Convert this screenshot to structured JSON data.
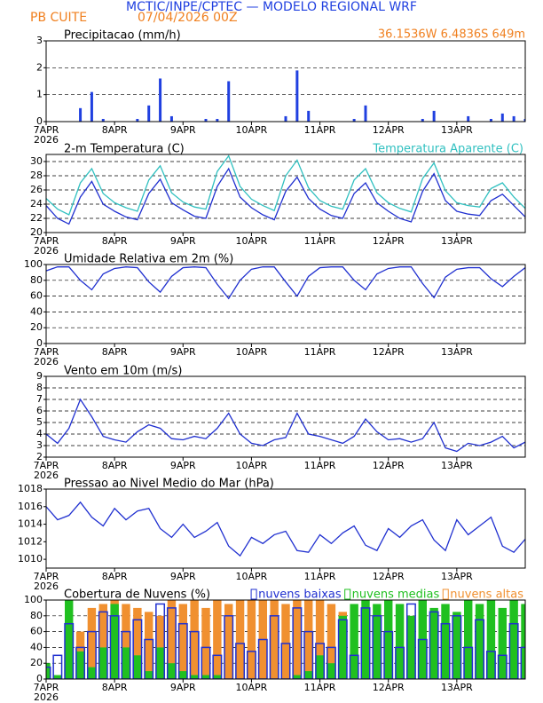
{
  "header": {
    "title": "MCTIC/INPE/CPTEC — MODELO REGIONAL WRF",
    "station": "PB CUITE",
    "run": "07/04/2026 00Z",
    "location": "36.1536W 6.4836S 649m"
  },
  "chart_data": [
    {
      "type": "bar",
      "title": "Precipitacao (mm/h)",
      "color": "#2040e0",
      "grid": true,
      "x": [
        0,
        4,
        8,
        12,
        16,
        20,
        24,
        28,
        32,
        36,
        40,
        44,
        48,
        52,
        56,
        60,
        64,
        68,
        72,
        76,
        80,
        84,
        88,
        92,
        96,
        100,
        104,
        108,
        112,
        116,
        120,
        124,
        128,
        132,
        136,
        140,
        144,
        148,
        152,
        156,
        160,
        164,
        168
      ],
      "values": [
        0,
        0,
        0,
        0.5,
        1.1,
        0.1,
        0,
        0,
        0.1,
        0.6,
        1.6,
        0.2,
        0,
        0,
        0.1,
        0.1,
        1.5,
        0,
        0,
        0,
        0,
        0.2,
        1.9,
        0.4,
        0,
        0,
        0,
        0.1,
        0.6,
        0,
        0,
        0,
        0,
        0.1,
        0.4,
        0,
        0,
        0.2,
        0,
        0.1,
        0.3,
        0.2,
        0.1
      ],
      "xlim": [
        0,
        168
      ],
      "xticks": [
        {
          "value": 0,
          "label": "7APR"
        },
        {
          "value": 24,
          "label": "8APR"
        },
        {
          "value": 48,
          "label": "9APR"
        },
        {
          "value": 72,
          "label": "10APR"
        },
        {
          "value": 96,
          "label": "11APR"
        },
        {
          "value": 120,
          "label": "12APR"
        },
        {
          "value": 144,
          "label": "13APR"
        }
      ],
      "x_year": "2026",
      "ylim": [
        0,
        3
      ],
      "yticks": [
        0,
        1,
        2,
        3
      ]
    },
    {
      "type": "line",
      "grid": true,
      "x": [
        0,
        4,
        8,
        12,
        16,
        20,
        24,
        28,
        32,
        36,
        40,
        44,
        48,
        52,
        56,
        60,
        64,
        68,
        72,
        76,
        80,
        84,
        88,
        92,
        96,
        100,
        104,
        108,
        112,
        116,
        120,
        124,
        128,
        132,
        136,
        140,
        144,
        148,
        152,
        156,
        160,
        164,
        168
      ],
      "series": [
        {
          "name": "2-m Temperatura (C)",
          "color": "#2030d0",
          "values": [
            23.8,
            22.0,
            21.2,
            25.0,
            27.2,
            24.0,
            23.0,
            22.2,
            21.8,
            25.5,
            27.5,
            24.2,
            23.2,
            22.3,
            22.0,
            26.5,
            29.0,
            25.0,
            23.5,
            22.5,
            21.8,
            25.8,
            27.8,
            24.8,
            23.3,
            22.4,
            22.0,
            25.5,
            27.0,
            24.2,
            23.0,
            22.0,
            21.5,
            25.8,
            28.3,
            24.5,
            23.0,
            22.6,
            22.4,
            24.5,
            25.4,
            23.8,
            22.2
          ]
        },
        {
          "name": "Temperatura Aparente (C)",
          "color": "#30c0c0",
          "values": [
            24.8,
            23.3,
            22.5,
            27.0,
            29.0,
            25.5,
            24.2,
            23.5,
            23.0,
            27.4,
            29.4,
            25.6,
            24.3,
            23.6,
            23.3,
            28.6,
            30.8,
            26.5,
            24.7,
            23.8,
            23.1,
            28.0,
            30.2,
            26.3,
            24.5,
            23.7,
            23.3,
            27.4,
            29.0,
            25.6,
            24.2,
            23.4,
            22.9,
            27.6,
            29.8,
            25.9,
            24.2,
            23.8,
            23.6,
            26.2,
            27.0,
            25.0,
            23.4
          ]
        }
      ],
      "xlim": [
        0,
        168
      ],
      "xticks": [
        {
          "value": 0,
          "label": "7APR"
        },
        {
          "value": 24,
          "label": "8APR"
        },
        {
          "value": 48,
          "label": "9APR"
        },
        {
          "value": 72,
          "label": "10APR"
        },
        {
          "value": 96,
          "label": "11APR"
        },
        {
          "value": 120,
          "label": "12APR"
        },
        {
          "value": 144,
          "label": "13APR"
        }
      ],
      "x_year": "2026",
      "ylim": [
        20,
        31
      ],
      "yticks": [
        20,
        22,
        24,
        26,
        28,
        30
      ]
    },
    {
      "type": "line",
      "title": "Umidade Relativa em 2m (%)",
      "color": "#2030d0",
      "grid": true,
      "x": [
        0,
        4,
        8,
        12,
        16,
        20,
        24,
        28,
        32,
        36,
        40,
        44,
        48,
        52,
        56,
        60,
        64,
        68,
        72,
        76,
        80,
        84,
        88,
        92,
        96,
        100,
        104,
        108,
        112,
        116,
        120,
        124,
        128,
        132,
        136,
        140,
        144,
        148,
        152,
        156,
        160,
        164,
        168
      ],
      "values": [
        92,
        97,
        97,
        80,
        68,
        88,
        95,
        97,
        96,
        78,
        65,
        85,
        96,
        97,
        96,
        75,
        57,
        80,
        94,
        97,
        97,
        78,
        60,
        85,
        96,
        97,
        97,
        80,
        68,
        88,
        95,
        97,
        97,
        76,
        58,
        84,
        94,
        96,
        96,
        82,
        72,
        85,
        96
      ],
      "xlim": [
        0,
        168
      ],
      "xticks": [
        {
          "value": 0,
          "label": "7APR"
        },
        {
          "value": 24,
          "label": "8APR"
        },
        {
          "value": 48,
          "label": "9APR"
        },
        {
          "value": 72,
          "label": "10APR"
        },
        {
          "value": 96,
          "label": "11APR"
        },
        {
          "value": 120,
          "label": "12APR"
        },
        {
          "value": 144,
          "label": "13APR"
        }
      ],
      "x_year": "2026",
      "ylim": [
        0,
        100
      ],
      "yticks": [
        0,
        20,
        40,
        60,
        80,
        100
      ]
    },
    {
      "type": "line",
      "title": "Vento em 10m (m/s)",
      "color": "#2030d0",
      "grid": true,
      "x": [
        0,
        4,
        8,
        12,
        16,
        20,
        24,
        28,
        32,
        36,
        40,
        44,
        48,
        52,
        56,
        60,
        64,
        68,
        72,
        76,
        80,
        84,
        88,
        92,
        96,
        100,
        104,
        108,
        112,
        116,
        120,
        124,
        128,
        132,
        136,
        140,
        144,
        148,
        152,
        156,
        160,
        164,
        168
      ],
      "values": [
        4.0,
        3.2,
        4.5,
        7.0,
        5.5,
        3.8,
        3.5,
        3.3,
        4.2,
        4.8,
        4.5,
        3.6,
        3.5,
        3.8,
        3.6,
        4.5,
        5.8,
        4.0,
        3.2,
        3.0,
        3.5,
        3.7,
        5.8,
        4.0,
        3.8,
        3.5,
        3.2,
        3.8,
        5.3,
        4.2,
        3.5,
        3.6,
        3.3,
        3.6,
        5.0,
        2.8,
        2.5,
        3.2,
        3.0,
        3.3,
        3.8,
        2.8,
        3.3
      ],
      "xlim": [
        0,
        168
      ],
      "xticks": [
        {
          "value": 0,
          "label": "7APR"
        },
        {
          "value": 24,
          "label": "8APR"
        },
        {
          "value": 48,
          "label": "9APR"
        },
        {
          "value": 72,
          "label": "10APR"
        },
        {
          "value": 96,
          "label": "11APR"
        },
        {
          "value": 120,
          "label": "12APR"
        },
        {
          "value": 144,
          "label": "13APR"
        }
      ],
      "x_year": "2026",
      "ylim": [
        2,
        9
      ],
      "yticks": [
        2,
        3,
        4,
        5,
        6,
        7,
        8,
        9
      ]
    },
    {
      "type": "line",
      "title": "Pressao ao Nivel Medio do Mar (hPa)",
      "color": "#2030d0",
      "grid": false,
      "x": [
        0,
        4,
        8,
        12,
        16,
        20,
        24,
        28,
        32,
        36,
        40,
        44,
        48,
        52,
        56,
        60,
        64,
        68,
        72,
        76,
        80,
        84,
        88,
        92,
        96,
        100,
        104,
        108,
        112,
        116,
        120,
        124,
        128,
        132,
        136,
        140,
        144,
        148,
        152,
        156,
        160,
        164,
        168
      ],
      "values": [
        1016.0,
        1014.5,
        1015.0,
        1016.5,
        1014.8,
        1013.8,
        1015.8,
        1014.5,
        1015.5,
        1015.8,
        1013.5,
        1012.5,
        1014.0,
        1012.5,
        1013.2,
        1014.2,
        1011.5,
        1010.4,
        1012.5,
        1011.8,
        1012.8,
        1013.2,
        1011.0,
        1010.8,
        1012.8,
        1011.8,
        1013.0,
        1013.8,
        1011.6,
        1011.0,
        1013.5,
        1012.5,
        1013.8,
        1014.5,
        1012.2,
        1011.0,
        1014.5,
        1012.8,
        1013.8,
        1014.8,
        1011.5,
        1010.8,
        1012.3
      ],
      "xlim": [
        0,
        168
      ],
      "xticks": [
        {
          "value": 0,
          "label": "7APR"
        },
        {
          "value": 24,
          "label": "8APR"
        },
        {
          "value": 48,
          "label": "9APR"
        },
        {
          "value": 72,
          "label": "10APR"
        },
        {
          "value": 96,
          "label": "11APR"
        },
        {
          "value": 120,
          "label": "12APR"
        },
        {
          "value": 144,
          "label": "13APR"
        }
      ],
      "x_year": "2026",
      "ylim": [
        1009,
        1018
      ],
      "yticks": [
        1010,
        1012,
        1014,
        1016,
        1018
      ]
    },
    {
      "type": "bar",
      "title": "Cobertura de Nuvens (%)",
      "grid": true,
      "x": [
        0,
        4,
        8,
        12,
        16,
        20,
        24,
        28,
        32,
        36,
        40,
        44,
        48,
        52,
        56,
        60,
        64,
        68,
        72,
        76,
        80,
        84,
        88,
        92,
        96,
        100,
        104,
        108,
        112,
        116,
        120,
        124,
        128,
        132,
        136,
        140,
        144,
        148,
        152,
        156,
        160,
        164,
        168
      ],
      "series": [
        {
          "name": "nuvens baixas",
          "color": "#2030d0",
          "values": [
            15,
            30,
            70,
            40,
            60,
            85,
            80,
            60,
            75,
            50,
            95,
            90,
            70,
            60,
            40,
            30,
            80,
            45,
            35,
            50,
            80,
            45,
            90,
            60,
            45,
            40,
            75,
            30,
            90,
            80,
            60,
            40,
            95,
            50,
            85,
            70,
            80,
            40,
            75,
            35,
            30,
            70,
            40
          ]
        },
        {
          "name": "nuvens medias",
          "color": "#20c020",
          "values": [
            20,
            5,
            100,
            35,
            15,
            40,
            95,
            40,
            30,
            10,
            40,
            20,
            10,
            5,
            5,
            5,
            0,
            0,
            0,
            0,
            0,
            0,
            5,
            10,
            30,
            20,
            80,
            95,
            100,
            95,
            100,
            95,
            80,
            100,
            90,
            95,
            85,
            100,
            95,
            100,
            90,
            100,
            95
          ]
        },
        {
          "name": "nuvens altas",
          "color": "#f09030",
          "values": [
            0,
            0,
            0,
            60,
            90,
            95,
            100,
            95,
            90,
            85,
            80,
            100,
            95,
            100,
            90,
            100,
            95,
            100,
            100,
            100,
            100,
            95,
            100,
            100,
            100,
            95,
            85,
            40,
            5,
            0,
            0,
            0,
            0,
            0,
            0,
            0,
            0,
            0,
            0,
            0,
            0,
            0,
            0
          ]
        }
      ],
      "xlim": [
        0,
        168
      ],
      "xticks": [
        {
          "value": 0,
          "label": "7APR"
        },
        {
          "value": 24,
          "label": "8APR"
        },
        {
          "value": 48,
          "label": "9APR"
        },
        {
          "value": 72,
          "label": "10APR"
        },
        {
          "value": 96,
          "label": "11APR"
        },
        {
          "value": 120,
          "label": "12APR"
        },
        {
          "value": 144,
          "label": "13APR"
        }
      ],
      "x_year": "2026",
      "ylim": [
        0,
        100
      ],
      "yticks": [
        0,
        20,
        40,
        60,
        80,
        100
      ]
    }
  ]
}
